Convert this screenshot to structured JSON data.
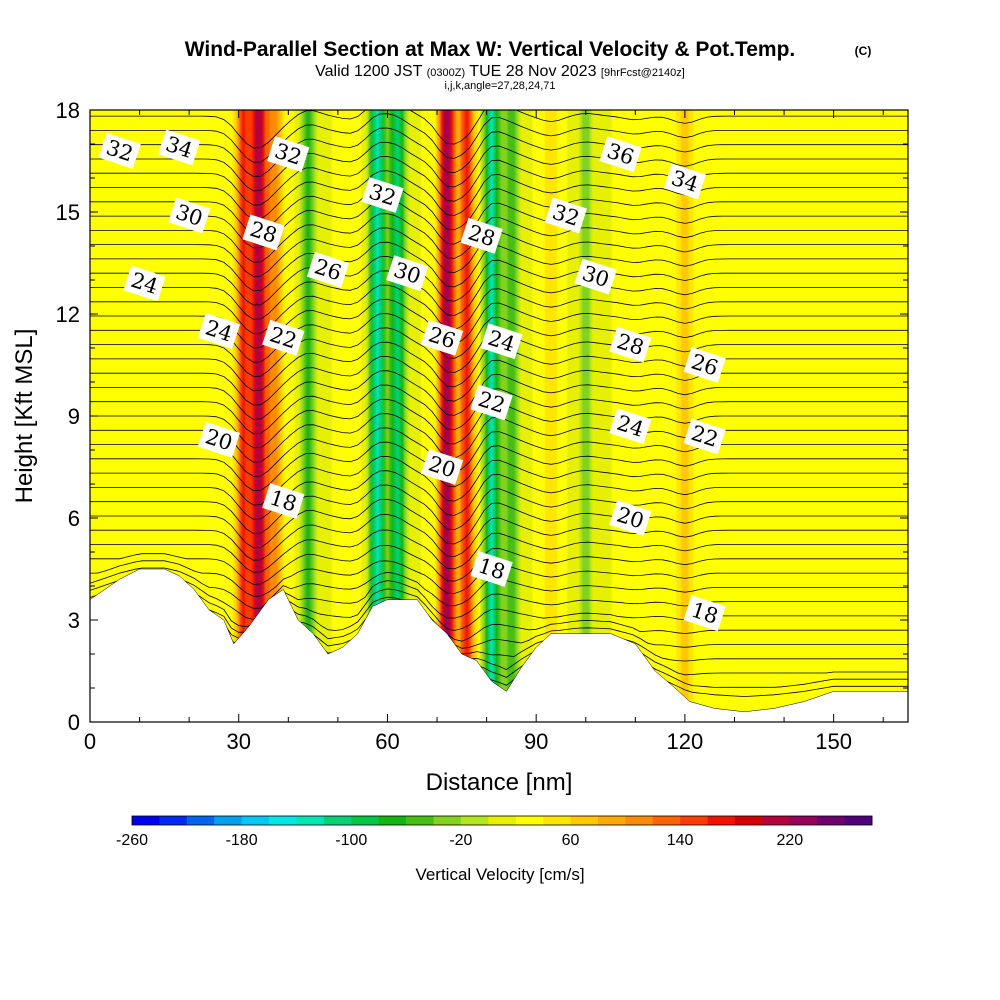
{
  "chart_data": {
    "type": "heatmap",
    "title": "Wind-Parallel Section at Max W: Vertical Velocity & Pot.Temp.",
    "copyright": "(C)",
    "subtitle_parts": [
      "Valid 1200 JST ",
      "(0300Z)",
      " TUE 28 Nov 2023 ",
      "[9hrFcst@2140z]"
    ],
    "indices": "i,j,k,angle=27,28,24,71",
    "xlabel": "Distance [nm]",
    "ylabel": "Height [Kft MSL]",
    "xlim": [
      0,
      165
    ],
    "ylim": [
      0,
      18
    ],
    "x_ticks": [
      0,
      30,
      60,
      90,
      120,
      150
    ],
    "y_ticks": [
      0,
      3,
      6,
      9,
      12,
      15,
      18
    ],
    "colorbar": {
      "label": "Vertical Velocity [cm/s]",
      "ticks": [
        "-260",
        "-180",
        "-100",
        "-20",
        "60",
        "140",
        "220"
      ],
      "min": -260,
      "max": 280,
      "step": 20,
      "colors": [
        "#0000f0",
        "#0028f0",
        "#0064f0",
        "#00a0f0",
        "#00c8f0",
        "#00e6e6",
        "#00e6b4",
        "#00d278",
        "#00c846",
        "#14b414",
        "#46be14",
        "#82d21e",
        "#b4e61e",
        "#e6f000",
        "#ffff00",
        "#ffe600",
        "#ffc800",
        "#ffaa00",
        "#ff8c00",
        "#ff6400",
        "#ff3c00",
        "#f01400",
        "#d20000",
        "#b4003c",
        "#96005a",
        "#6e006e",
        "#500078"
      ]
    },
    "vertical_velocity_columns": [
      {
        "x": 31,
        "w": 170
      },
      {
        "x": 34,
        "w": 230
      },
      {
        "x": 37,
        "w": 120
      },
      {
        "x": 40,
        "w": 30
      },
      {
        "x": 44,
        "w": -70
      },
      {
        "x": 53,
        "w": 40
      },
      {
        "x": 58,
        "w": -150
      },
      {
        "x": 62,
        "w": -120
      },
      {
        "x": 72,
        "w": 260
      },
      {
        "x": 76,
        "w": 180
      },
      {
        "x": 81,
        "w": -140
      },
      {
        "x": 85,
        "w": -60
      },
      {
        "x": 93,
        "w": 60
      },
      {
        "x": 100,
        "w": -30
      },
      {
        "x": 110,
        "w": 40
      },
      {
        "x": 120,
        "w": 80
      }
    ],
    "terrain": [
      [
        0,
        3.6
      ],
      [
        3,
        3.9
      ],
      [
        6,
        4.2
      ],
      [
        10,
        4.5
      ],
      [
        15,
        4.5
      ],
      [
        18,
        4.3
      ],
      [
        21,
        3.9
      ],
      [
        24,
        3.3
      ],
      [
        27,
        3.0
      ],
      [
        29,
        2.3
      ],
      [
        32,
        2.8
      ],
      [
        36,
        3.6
      ],
      [
        39,
        3.9
      ],
      [
        42,
        3.0
      ],
      [
        45,
        2.6
      ],
      [
        48,
        2.0
      ],
      [
        51,
        2.2
      ],
      [
        54,
        2.6
      ],
      [
        57,
        3.4
      ],
      [
        60,
        3.6
      ],
      [
        66,
        3.6
      ],
      [
        69,
        3.0
      ],
      [
        72,
        2.6
      ],
      [
        75,
        2.0
      ],
      [
        78,
        1.8
      ],
      [
        81,
        1.2
      ],
      [
        84,
        0.9
      ],
      [
        87,
        1.6
      ],
      [
        90,
        2.2
      ],
      [
        93,
        2.6
      ],
      [
        105,
        2.6
      ],
      [
        110,
        2.3
      ],
      [
        114,
        1.5
      ],
      [
        118,
        1.0
      ],
      [
        121,
        0.6
      ],
      [
        126,
        0.4
      ],
      [
        132,
        0.3
      ],
      [
        138,
        0.4
      ],
      [
        144,
        0.6
      ],
      [
        150,
        0.9
      ],
      [
        165,
        0.9
      ]
    ],
    "theta_contour_labels": [
      {
        "text": "32",
        "x": 6,
        "y": 16.8
      },
      {
        "text": "34",
        "x": 18,
        "y": 16.9
      },
      {
        "text": "32",
        "x": 40,
        "y": 16.7
      },
      {
        "text": "32",
        "x": 59,
        "y": 15.5
      },
      {
        "text": "36",
        "x": 107,
        "y": 16.7
      },
      {
        "text": "34",
        "x": 120,
        "y": 15.9
      },
      {
        "text": "30",
        "x": 20,
        "y": 14.9
      },
      {
        "text": "28",
        "x": 35,
        "y": 14.4
      },
      {
        "text": "32",
        "x": 96,
        "y": 14.9
      },
      {
        "text": "28",
        "x": 79,
        "y": 14.3
      },
      {
        "text": "26",
        "x": 48,
        "y": 13.3
      },
      {
        "text": "30",
        "x": 64,
        "y": 13.2
      },
      {
        "text": "24",
        "x": 11,
        "y": 12.9
      },
      {
        "text": "30",
        "x": 102,
        "y": 13.1
      },
      {
        "text": "24",
        "x": 26,
        "y": 11.5
      },
      {
        "text": "22",
        "x": 39,
        "y": 11.3
      },
      {
        "text": "26",
        "x": 71,
        "y": 11.3
      },
      {
        "text": "24",
        "x": 83,
        "y": 11.2
      },
      {
        "text": "28",
        "x": 109,
        "y": 11.1
      },
      {
        "text": "26",
        "x": 124,
        "y": 10.5
      },
      {
        "text": "22",
        "x": 81,
        "y": 9.4
      },
      {
        "text": "24",
        "x": 109,
        "y": 8.7
      },
      {
        "text": "22",
        "x": 124,
        "y": 8.4
      },
      {
        "text": "20",
        "x": 26,
        "y": 8.3
      },
      {
        "text": "20",
        "x": 71,
        "y": 7.5
      },
      {
        "text": "18",
        "x": 39,
        "y": 6.5
      },
      {
        "text": "20",
        "x": 109,
        "y": 6.0
      },
      {
        "text": "18",
        "x": 81,
        "y": 4.5
      },
      {
        "text": "18",
        "x": 124,
        "y": 3.2
      }
    ]
  }
}
